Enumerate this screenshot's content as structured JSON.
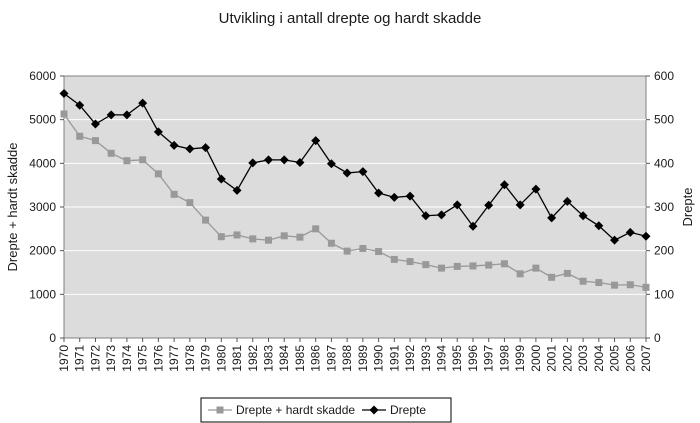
{
  "chart_data": {
    "type": "line",
    "title": "Utvikling i antall drepte og hardt skadde",
    "ylabel_left": "Drepte + hardt skadde",
    "ylabel_right": "Drepte",
    "xlabel": "",
    "ylim_left": [
      0,
      6000
    ],
    "ylim_right": [
      0,
      600
    ],
    "yticks_left": [
      0,
      1000,
      2000,
      3000,
      4000,
      5000,
      6000
    ],
    "yticks_right": [
      0,
      100,
      200,
      300,
      400,
      500,
      600
    ],
    "grid": true,
    "legend_position": "bottom",
    "categories": [
      "1970",
      "1971",
      "1972",
      "1973",
      "1974",
      "1975",
      "1976",
      "1977",
      "1978",
      "1979",
      "1980",
      "1981",
      "1982",
      "1983",
      "1984",
      "1985",
      "1986",
      "1987",
      "1988",
      "1989",
      "1990",
      "1991",
      "1992",
      "1993",
      "1994",
      "1995",
      "1996",
      "1997",
      "1998",
      "1999",
      "2000",
      "2001",
      "2002",
      "2003",
      "2004",
      "2005",
      "2006",
      "2007"
    ],
    "series": [
      {
        "name": "Drepte + hardt skadde",
        "axis": "left",
        "marker": "square",
        "color": "#999999",
        "values": [
          5130,
          4620,
          4520,
          4230,
          4060,
          4080,
          3760,
          3290,
          3100,
          2700,
          2320,
          2360,
          2270,
          2240,
          2340,
          2310,
          2500,
          2170,
          1990,
          2050,
          1980,
          1800,
          1750,
          1680,
          1600,
          1640,
          1650,
          1670,
          1700,
          1470,
          1600,
          1390,
          1480,
          1300,
          1270,
          1210,
          1220,
          1160
        ]
      },
      {
        "name": "Drepte",
        "axis": "right",
        "marker": "diamond",
        "color": "#000000",
        "values": [
          560,
          533,
          490,
          511,
          511,
          538,
          472,
          441,
          433,
          436,
          364,
          338,
          401,
          408,
          408,
          402,
          452,
          399,
          378,
          381,
          332,
          322,
          325,
          280,
          282,
          305,
          256,
          304,
          351,
          305,
          341,
          275,
          313,
          280,
          257,
          224,
          242,
          233
        ]
      }
    ]
  },
  "colors": {
    "plot_background": "#dcdcdc",
    "gridline": "#ffffff",
    "axis": "#555555"
  }
}
